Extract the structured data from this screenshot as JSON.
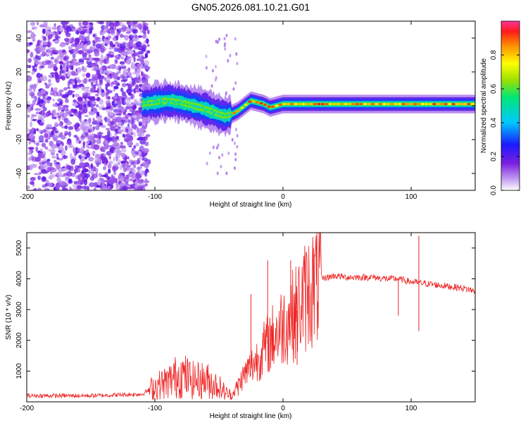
{
  "title": "GN05.2026.081.10.21.G01",
  "chart_data": [
    {
      "type": "heatmap",
      "title": "GN05.2026.081.10.21.G01",
      "xlabel": "Height of straight line (km)",
      "ylabel": "Frequency (Hz)",
      "xlim": [
        -200,
        150
      ],
      "ylim": [
        -50,
        50
      ],
      "xticks": [
        -200,
        -100,
        0,
        100
      ],
      "yticks": [
        -40,
        -20,
        0,
        20,
        40
      ],
      "colorbar": {
        "label": "Normalized spectral amplitude",
        "range": [
          0,
          1
        ],
        "ticks": [
          0.0,
          0.2,
          0.4,
          0.6,
          0.8
        ]
      },
      "signal_track": {
        "x": [
          -110,
          -100,
          -90,
          -80,
          -70,
          -60,
          -50,
          -45,
          -40,
          -35,
          -30,
          -25,
          -20,
          -15,
          -10,
          -5,
          0,
          10,
          20,
          50,
          100,
          150
        ],
        "freq": [
          1,
          2,
          3,
          2,
          0,
          -2,
          -5,
          -6,
          -5,
          -3,
          0,
          3,
          2,
          1,
          -1,
          0,
          1,
          1,
          1,
          1,
          1,
          1
        ]
      },
      "noise_region": [
        -200,
        -110
      ]
    },
    {
      "type": "line",
      "xlabel": "Height of straight line (km)",
      "ylabel": "SNR (10 * v/v)",
      "xlim": [
        -200,
        150
      ],
      "ylim": [
        0,
        5500
      ],
      "xticks": [
        -200,
        -100,
        0,
        100
      ],
      "yticks": [
        1000,
        2000,
        3000,
        4000,
        5000
      ],
      "color": "#ee2222",
      "series": [
        {
          "name": "SNR",
          "x": [
            -200,
            -150,
            -110,
            -100,
            -90,
            -80,
            -70,
            -60,
            -50,
            -45,
            -40,
            -30,
            -20,
            -10,
            0,
            10,
            20,
            30,
            40,
            50,
            60,
            70,
            80,
            90,
            100,
            110,
            120,
            130,
            140,
            150
          ],
          "y": [
            200,
            200,
            250,
            500,
            650,
            900,
            700,
            700,
            500,
            300,
            200,
            900,
            1400,
            2000,
            2500,
            2900,
            3600,
            4000,
            4100,
            4050,
            4050,
            4050,
            4000,
            4000,
            3900,
            3850,
            3800,
            3750,
            3700,
            3600
          ]
        }
      ],
      "spikes": [
        {
          "x": -35,
          "y": 200
        },
        {
          "x": -25,
          "y": 3500
        },
        {
          "x": -12,
          "y": 4600
        },
        {
          "x": 6,
          "y": 4600
        },
        {
          "x": 11,
          "y": 1200
        },
        {
          "x": 90,
          "y": 2800
        },
        {
          "x": 106,
          "y": 5400
        },
        {
          "x": 106,
          "y": 2300
        }
      ]
    }
  ]
}
